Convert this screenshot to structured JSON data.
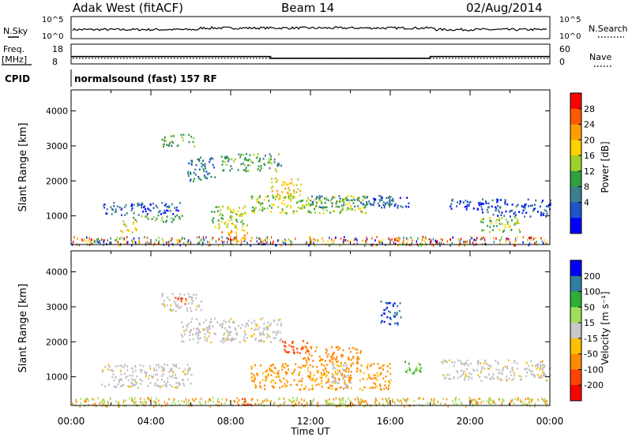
{
  "header": {
    "station": "Adak West (fitACF)",
    "beam": "Beam 14",
    "date": "02/Aug/2014"
  },
  "noise_panel": {
    "left_label": "N.Sky",
    "right_label": "N.Search",
    "left_ticks": [
      "10^5",
      "10^0"
    ],
    "right_ticks": [
      "10^5",
      "10^0"
    ]
  },
  "freq_panel": {
    "left_label_1": "Freq.",
    "left_label_2": "[MHz]",
    "right_label": "Nave",
    "left_ticks": [
      "18",
      "8"
    ],
    "right_ticks": [
      "60",
      "0"
    ],
    "frequency_steps": [
      {
        "start_hour": 0,
        "end_hour": 10,
        "value_mhz": 11.5
      },
      {
        "start_hour": 10,
        "end_hour": 18,
        "value_mhz": 10.4
      },
      {
        "start_hour": 18,
        "end_hour": 24,
        "value_mhz": 11.5
      }
    ]
  },
  "cpid": {
    "label": "CPID",
    "program": "normalsound (fast) 157 RF"
  },
  "colors": {
    "power_scale": [
      "#0000ff",
      "#1f55c8",
      "#3c7f8f",
      "#2f9f3f",
      "#9ecf2a",
      "#ffd100",
      "#ff9d00",
      "#ff5a00",
      "#ff0000"
    ],
    "velocity_scale": [
      "#ff0000",
      "#ff4400",
      "#ff8a00",
      "#ffc000",
      "#c8c8c8",
      "#9ee05a",
      "#2fae34",
      "#2f7fa0",
      "#0000ff"
    ],
    "ground_scatter": "#c0c0c0"
  },
  "chart_data": [
    {
      "type": "heatmap",
      "panel": "power",
      "ylabel": "Slant Range [km]",
      "xlabel": "",
      "x_ticks": [
        "00:00",
        "04:00",
        "08:00",
        "12:00",
        "16:00",
        "20:00",
        "00:00"
      ],
      "y_ticks": [
        "1000",
        "2000",
        "3000",
        "4000"
      ],
      "xlim": [
        0,
        24
      ],
      "ylim": [
        180,
        4600
      ],
      "colorbar": {
        "label": "Power [dB]",
        "range": [
          0,
          32
        ],
        "ticks": [
          "4",
          "8",
          "12",
          "16",
          "20",
          "24",
          "28"
        ]
      },
      "regions": [
        {
          "x": [
            1.5,
            5.5
          ],
          "y": [
            1050,
            1400
          ],
          "level": 6
        },
        {
          "x": [
            3.0,
            5.6
          ],
          "y": [
            850,
            1050
          ],
          "level": 14
        },
        {
          "x": [
            2.4,
            3.3
          ],
          "y": [
            550,
            900
          ],
          "level": 22
        },
        {
          "x": [
            4.5,
            6.2
          ],
          "y": [
            3000,
            3350
          ],
          "level": 14
        },
        {
          "x": [
            5.8,
            7.2
          ],
          "y": [
            2000,
            2700
          ],
          "level": 10
        },
        {
          "x": [
            7.0,
            8.8
          ],
          "y": [
            600,
            1300
          ],
          "level": 18
        },
        {
          "x": [
            7.5,
            8.8
          ],
          "y": [
            300,
            600
          ],
          "level": 24
        },
        {
          "x": [
            7.5,
            10.5
          ],
          "y": [
            2300,
            2800
          ],
          "level": 12
        },
        {
          "x": [
            10.0,
            11.5
          ],
          "y": [
            1500,
            2100
          ],
          "level": 22
        },
        {
          "x": [
            9.0,
            15.0
          ],
          "y": [
            1100,
            1600
          ],
          "level": 16
        },
        {
          "x": [
            12.0,
            16.0
          ],
          "y": [
            1250,
            1600
          ],
          "level": 8
        },
        {
          "x": [
            15.0,
            17.0
          ],
          "y": [
            1250,
            1550
          ],
          "level": 4
        },
        {
          "x": [
            18.8,
            20.5
          ],
          "y": [
            1200,
            1500
          ],
          "level": 6
        },
        {
          "x": [
            20.5,
            24.0
          ],
          "y": [
            1000,
            1500
          ],
          "level": 4
        },
        {
          "x": [
            20.5,
            22.5
          ],
          "y": [
            550,
            1000
          ],
          "level": 18
        }
      ]
    },
    {
      "type": "heatmap",
      "panel": "velocity",
      "ylabel": "Slant Range [km]",
      "xlabel": "Time UT",
      "x_ticks": [
        "00:00",
        "04:00",
        "08:00",
        "12:00",
        "16:00",
        "20:00",
        "00:00"
      ],
      "y_ticks": [
        "1000",
        "2000",
        "3000",
        "4000"
      ],
      "xlim": [
        0,
        24
      ],
      "ylim": [
        180,
        4600
      ],
      "colorbar": {
        "label": "Velocity [m s⁻¹]",
        "range": [
          -250,
          250
        ],
        "ticks": [
          "200",
          "100",
          "50",
          "15",
          "-15",
          "-50",
          "-100",
          "-200"
        ]
      },
      "regions": [
        {
          "x": [
            1.5,
            6.0
          ],
          "y": [
            700,
            1400
          ],
          "vel": 0
        },
        {
          "x": [
            4.5,
            6.5
          ],
          "y": [
            2900,
            3400
          ],
          "vel": 0
        },
        {
          "x": [
            5.5,
            8.0
          ],
          "y": [
            2000,
            2700
          ],
          "vel": 0
        },
        {
          "x": [
            5.2,
            5.8
          ],
          "y": [
            3100,
            3300
          ],
          "vel": -180
        },
        {
          "x": [
            7.8,
            10.5
          ],
          "y": [
            2000,
            2700
          ],
          "vel": 0
        },
        {
          "x": [
            9.0,
            16.0
          ],
          "y": [
            650,
            1400
          ],
          "vel": -60
        },
        {
          "x": [
            11.5,
            14.5
          ],
          "y": [
            1400,
            1900
          ],
          "vel": -80
        },
        {
          "x": [
            10.5,
            12.0
          ],
          "y": [
            1700,
            2050
          ],
          "vel": -120
        },
        {
          "x": [
            13.0,
            14.0
          ],
          "y": [
            700,
            1400
          ],
          "vel": 0
        },
        {
          "x": [
            16.5,
            17.5
          ],
          "y": [
            1100,
            1500
          ],
          "vel": 60
        },
        {
          "x": [
            15.5,
            16.5
          ],
          "y": [
            2500,
            3200
          ],
          "vel": 200
        },
        {
          "x": [
            18.5,
            24.0
          ],
          "y": [
            900,
            1500
          ],
          "vel": 0
        },
        {
          "x": [
            8.2,
            9.0
          ],
          "y": [
            200,
            400
          ],
          "vel": -160
        }
      ]
    }
  ]
}
